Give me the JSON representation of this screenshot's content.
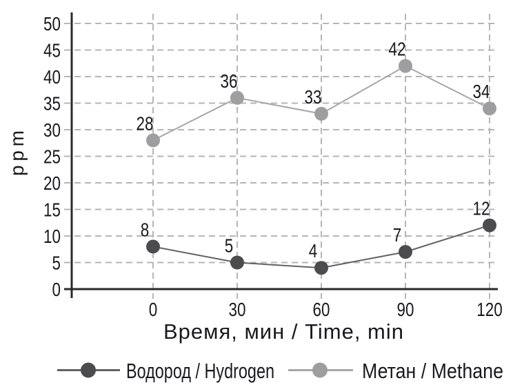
{
  "chart_data": {
    "type": "line",
    "title": "",
    "xlabel": "Время, мин / Time, min",
    "ylabel": "ppm",
    "x": [
      0,
      30,
      60,
      90,
      120
    ],
    "x_tick_labels": [
      "0",
      "30",
      "60",
      "90",
      "120"
    ],
    "y_ticks": [
      0,
      5,
      10,
      15,
      20,
      25,
      30,
      35,
      40,
      45,
      50
    ],
    "y_tick_labels": [
      "0",
      "5",
      "10",
      "15",
      "20",
      "25",
      "30",
      "35",
      "40",
      "45",
      "50"
    ],
    "ylim": [
      0,
      50
    ],
    "grid": "dashed-both-directions",
    "legend_position": "bottom",
    "point_labels": "values-shown-above-markers",
    "series": [
      {
        "name": "Водород / Hydrogen",
        "values": [
          8,
          5,
          4,
          7,
          12
        ],
        "marker_color": "#4c4c4f",
        "line_color": "#616164"
      },
      {
        "name": "Метан / Methane",
        "values": [
          28,
          36,
          33,
          42,
          34
        ],
        "marker_color": "#9e9ea0",
        "line_color": "#a7a7a9"
      }
    ]
  },
  "colors": {
    "background": "#ffffff",
    "text": "#1a1a1e",
    "axis": "#29292c",
    "grid": "#b5b5b5"
  }
}
